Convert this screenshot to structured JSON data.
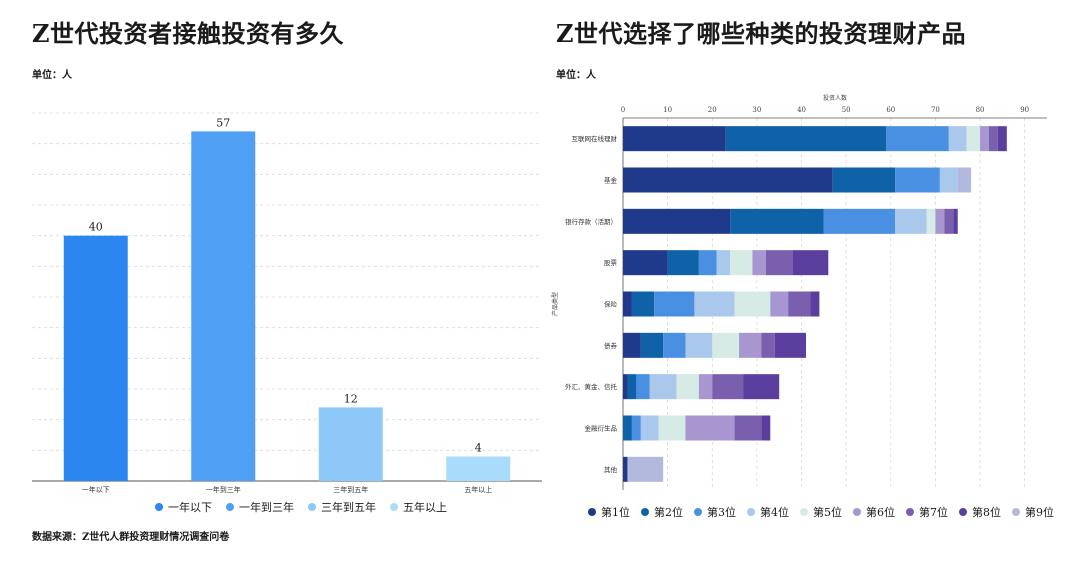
{
  "left": {
    "title": "Z世代投资者接触投资有多久",
    "unit": "单位：人",
    "source": "数据来源：Z世代人群投资理财情况调查问卷"
  },
  "right": {
    "title": "Z世代选择了哪些种类的投资理财产品",
    "unit": "单位：人"
  },
  "colors": {
    "left_bars": [
      "#2b86f0",
      "#4fa0f5",
      "#8ec8f8",
      "#a9dbfb"
    ],
    "ranks": [
      "#1f3a8a",
      "#0f62a8",
      "#4a90e2",
      "#a9c8ec",
      "#d6eae6",
      "#a796cf",
      "#7a5fae",
      "#5b3f9e",
      "#b3b9dc"
    ]
  },
  "chart_data": [
    {
      "type": "bar",
      "title": "Z世代投资者接触投资有多久",
      "categories": [
        "一年以下",
        "一年到三年",
        "三年到五年",
        "五年以上"
      ],
      "values": [
        40,
        57,
        12,
        4
      ],
      "ylim": [
        0,
        60
      ],
      "grid": true,
      "legend": [
        "一年以下",
        "一年到三年",
        "三年到五年",
        "五年以上"
      ],
      "legend_position": "bottom"
    },
    {
      "type": "bar",
      "orientation": "horizontal-stacked",
      "title": "Z世代选择了哪些种类的投资理财产品",
      "xlabel": "投资人数",
      "ylabel": "产品类型",
      "xlim": [
        0,
        95
      ],
      "xticks": [
        0,
        10,
        20,
        30,
        40,
        50,
        60,
        70,
        80,
        90
      ],
      "categories": [
        "互联网在线理财",
        "基金",
        "银行存款（活期）",
        "股票",
        "保险",
        "债券",
        "外汇、黄金、信托",
        "金融衍生品",
        "其他"
      ],
      "series": [
        {
          "name": "第1位",
          "values": [
            23,
            47,
            24,
            10,
            2,
            4,
            1,
            0,
            1
          ]
        },
        {
          "name": "第2位",
          "values": [
            36,
            14,
            21,
            7,
            5,
            5,
            2,
            2,
            0
          ]
        },
        {
          "name": "第3位",
          "values": [
            14,
            10,
            16,
            4,
            9,
            5,
            3,
            2,
            0
          ]
        },
        {
          "name": "第4位",
          "values": [
            4,
            4,
            7,
            3,
            9,
            6,
            6,
            4,
            0
          ]
        },
        {
          "name": "第5位",
          "values": [
            3,
            0,
            2,
            5,
            8,
            6,
            5,
            6,
            0
          ]
        },
        {
          "name": "第6位",
          "values": [
            2,
            0,
            2,
            3,
            4,
            5,
            3,
            11,
            0
          ]
        },
        {
          "name": "第7位",
          "values": [
            2,
            0,
            2,
            6,
            5,
            3,
            7,
            6,
            0
          ]
        },
        {
          "name": "第8位",
          "values": [
            2,
            0,
            1,
            8,
            2,
            7,
            8,
            2,
            0
          ]
        },
        {
          "name": "第9位",
          "values": [
            0,
            3,
            0,
            0,
            0,
            0,
            0,
            0,
            8
          ]
        }
      ],
      "grid": true,
      "legend_position": "bottom"
    }
  ]
}
